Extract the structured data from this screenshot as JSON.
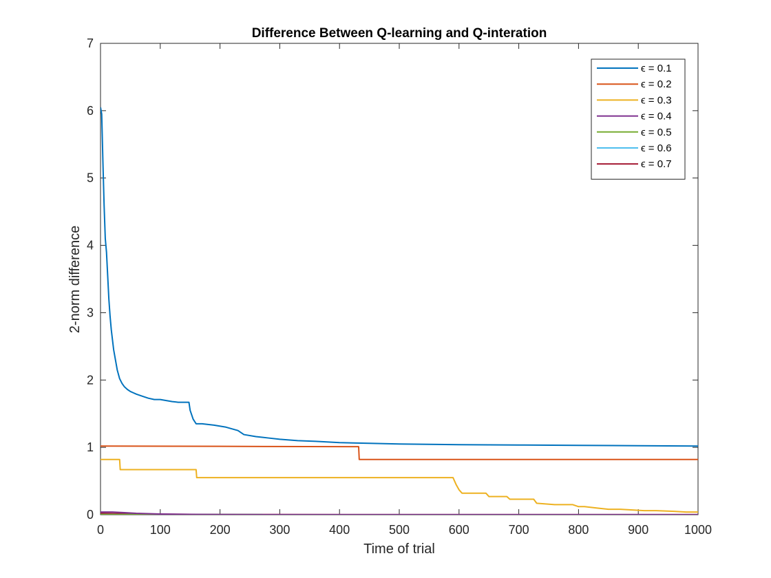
{
  "chart_data": {
    "type": "line",
    "title": "Difference Between Q-learning and Q-interation",
    "xlabel": "Time of trial",
    "ylabel": "2-norm difference",
    "xlim": [
      0,
      1000
    ],
    "ylim": [
      0,
      7
    ],
    "xticks": [
      "0",
      "100",
      "200",
      "300",
      "400",
      "500",
      "600",
      "700",
      "800",
      "900",
      "1000"
    ],
    "yticks": [
      "0",
      "1",
      "2",
      "3",
      "4",
      "5",
      "6",
      "7"
    ],
    "grid": false,
    "legend_position": "top-right",
    "series": [
      {
        "name": "ϵ = 0.1",
        "color": "#0072BD",
        "x": [
          0,
          2,
          4,
          6,
          8,
          10,
          12,
          14,
          16,
          18,
          20,
          22,
          25,
          28,
          32,
          36,
          40,
          45,
          50,
          55,
          60,
          70,
          80,
          90,
          100,
          120,
          130,
          148,
          150,
          155,
          160,
          170,
          190,
          210,
          230,
          240,
          260,
          280,
          300,
          330,
          360,
          400,
          450,
          500,
          550,
          600,
          700,
          800,
          900,
          1000
        ],
        "y": [
          6.05,
          5.95,
          5.25,
          4.6,
          4.1,
          3.9,
          3.55,
          3.2,
          2.95,
          2.75,
          2.6,
          2.45,
          2.3,
          2.15,
          2.02,
          1.95,
          1.9,
          1.86,
          1.83,
          1.81,
          1.79,
          1.76,
          1.73,
          1.71,
          1.71,
          1.68,
          1.67,
          1.67,
          1.55,
          1.42,
          1.35,
          1.35,
          1.33,
          1.3,
          1.25,
          1.19,
          1.16,
          1.14,
          1.12,
          1.1,
          1.09,
          1.07,
          1.06,
          1.05,
          1.045,
          1.04,
          1.035,
          1.03,
          1.025,
          1.02
        ]
      },
      {
        "name": "ϵ = 0.2",
        "color": "#D95319",
        "x": [
          0,
          200,
          432,
          433,
          1000
        ],
        "y": [
          1.02,
          1.015,
          1.01,
          0.82,
          0.82
        ]
      },
      {
        "name": "ϵ = 0.3",
        "color": "#EDB120",
        "x": [
          0,
          32,
          33,
          160,
          161,
          590,
          595,
          600,
          605,
          645,
          650,
          680,
          685,
          725,
          730,
          760,
          790,
          800,
          810,
          830,
          850,
          870,
          890,
          910,
          930,
          960,
          980,
          1000
        ],
        "y": [
          0.82,
          0.82,
          0.67,
          0.67,
          0.55,
          0.55,
          0.45,
          0.37,
          0.32,
          0.32,
          0.27,
          0.27,
          0.23,
          0.23,
          0.17,
          0.15,
          0.15,
          0.12,
          0.12,
          0.1,
          0.08,
          0.08,
          0.07,
          0.06,
          0.06,
          0.05,
          0.04,
          0.04
        ]
      },
      {
        "name": "ϵ = 0.4",
        "color": "#7E2F8E",
        "x": [
          0,
          20,
          40,
          60,
          80,
          100,
          150,
          200,
          300,
          1000
        ],
        "y": [
          0.04,
          0.04,
          0.03,
          0.02,
          0.015,
          0.01,
          0.005,
          0.002,
          0.001,
          0.001
        ]
      },
      {
        "name": "ϵ = 0.5",
        "color": "#77AC30",
        "x": [
          0,
          1000
        ],
        "y": [
          0.002,
          0.001
        ]
      },
      {
        "name": "ϵ = 0.6",
        "color": "#4DBEEE",
        "x": [
          0,
          1000
        ],
        "y": [
          0.002,
          0.001
        ]
      },
      {
        "name": "ϵ = 0.7",
        "color": "#A2142F",
        "x": [
          0,
          40,
          100,
          200,
          300,
          1000
        ],
        "y": [
          0.02,
          0.015,
          0.008,
          0.004,
          0.002,
          0.001
        ]
      }
    ]
  }
}
